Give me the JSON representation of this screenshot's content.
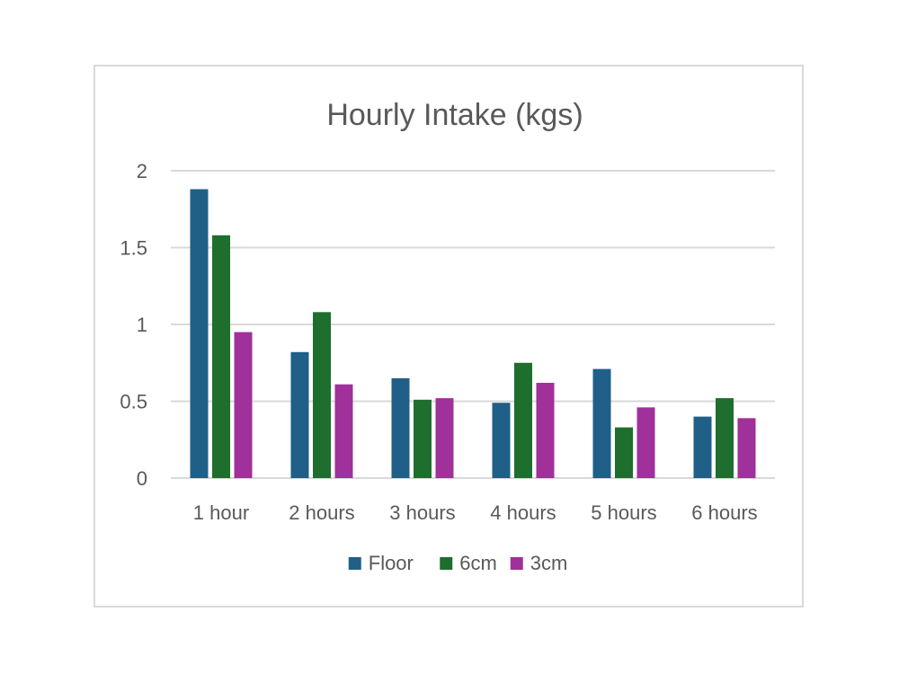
{
  "chart_data": {
    "type": "bar",
    "title": "Hourly Intake (kgs)",
    "xlabel": "",
    "ylabel": "",
    "categories": [
      "1 hour",
      "2 hours",
      "3 hours",
      "4 hours",
      "5 hours",
      "6 hours"
    ],
    "series": [
      {
        "name": "Floor",
        "color": "#1f5f88",
        "values": [
          1.88,
          0.82,
          0.65,
          0.49,
          0.71,
          0.4
        ]
      },
      {
        "name": "6cm",
        "color": "#1e6e2e",
        "values": [
          1.58,
          1.08,
          0.51,
          0.75,
          0.33,
          0.52
        ]
      },
      {
        "name": "3cm",
        "color": "#a0309a",
        "values": [
          0.95,
          0.61,
          0.52,
          0.62,
          0.46,
          0.39
        ]
      }
    ],
    "ylim": [
      0,
      2
    ],
    "yticks": [
      0,
      0.5,
      1,
      1.5,
      2
    ],
    "ytick_labels": [
      "0",
      "0.5",
      "1",
      "1.5",
      "2"
    ],
    "grid": true,
    "legend_position": "bottom"
  }
}
